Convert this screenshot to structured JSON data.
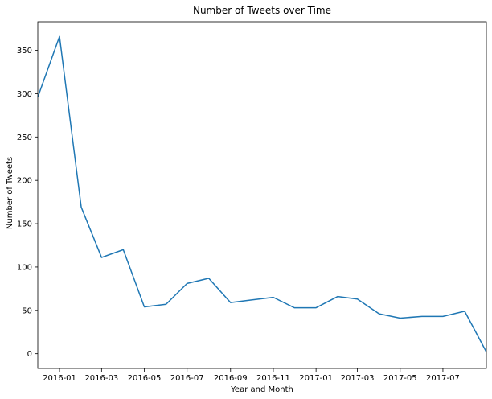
{
  "chart_data": {
    "type": "line",
    "title": "Number of Tweets over Time",
    "xlabel": "Year and Month",
    "ylabel": "Number of Tweets",
    "grid": false,
    "legend": "none",
    "xlim": [
      "2015-12-01",
      "2017-09-01"
    ],
    "ylim": [
      -17,
      383
    ],
    "x_ticks": [
      "2016-01",
      "2016-03",
      "2016-05",
      "2016-07",
      "2016-09",
      "2016-11",
      "2017-01",
      "2017-03",
      "2017-05",
      "2017-07"
    ],
    "x_tick_dates": [
      "2016-01-01",
      "2016-03-01",
      "2016-05-01",
      "2016-07-01",
      "2016-09-01",
      "2016-11-01",
      "2017-01-01",
      "2017-03-01",
      "2017-05-01",
      "2017-07-01"
    ],
    "y_ticks": [
      0,
      50,
      100,
      150,
      200,
      250,
      300,
      350
    ],
    "series": [
      {
        "color": "#1f77b4",
        "x": [
          "2015-12-01",
          "2016-01-01",
          "2016-02-01",
          "2016-03-01",
          "2016-04-01",
          "2016-05-01",
          "2016-06-01",
          "2016-07-01",
          "2016-08-01",
          "2016-09-01",
          "2016-10-01",
          "2016-11-01",
          "2016-12-01",
          "2017-01-01",
          "2017-02-01",
          "2017-03-01",
          "2017-04-01",
          "2017-05-01",
          "2017-06-01",
          "2017-07-01",
          "2017-08-01",
          "2017-09-01"
        ],
        "values": [
          296,
          366,
          169,
          111,
          120,
          54,
          57,
          81,
          87,
          59,
          62,
          65,
          53,
          53,
          66,
          63,
          46,
          41,
          43,
          43,
          49,
          2
        ]
      }
    ]
  }
}
